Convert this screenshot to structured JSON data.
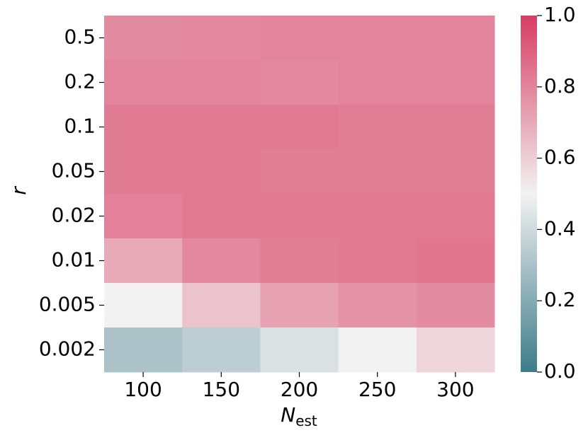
{
  "chart_data": {
    "type": "heatmap",
    "xlabel": {
      "main": "N",
      "sub": "est"
    },
    "ylabel": "r",
    "x_categories": [
      "100",
      "150",
      "200",
      "250",
      "300"
    ],
    "y_categories": [
      "0.5",
      "0.2",
      "0.1",
      "0.05",
      "0.02",
      "0.01",
      "0.005",
      "0.002"
    ],
    "values": [
      [
        0.78,
        0.79,
        0.8,
        0.8,
        0.8
      ],
      [
        0.8,
        0.8,
        0.79,
        0.8,
        0.8
      ],
      [
        0.83,
        0.83,
        0.83,
        0.82,
        0.82
      ],
      [
        0.83,
        0.83,
        0.82,
        0.82,
        0.82
      ],
      [
        0.81,
        0.83,
        0.83,
        0.83,
        0.83
      ],
      [
        0.7,
        0.79,
        0.82,
        0.83,
        0.84
      ],
      [
        0.5,
        0.63,
        0.72,
        0.76,
        0.78
      ],
      [
        0.3,
        0.35,
        0.43,
        0.5,
        0.58
      ]
    ],
    "colormap": [
      "#3d7b8a",
      "#f2f2f2",
      "#d83c62"
    ],
    "clim": [
      0,
      1
    ],
    "cticks": [
      {
        "value": 0,
        "label": "0.0"
      },
      {
        "value": 0.2,
        "label": "0.2"
      },
      {
        "value": 0.4,
        "label": "0.4"
      },
      {
        "value": 0.6,
        "label": "0.6"
      },
      {
        "value": 0.8,
        "label": "0.8"
      },
      {
        "value": 1,
        "label": "1.0"
      }
    ]
  }
}
